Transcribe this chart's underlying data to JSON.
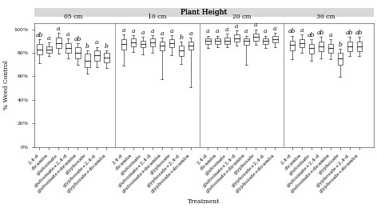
{
  "title": "Plant Height",
  "ylabel": "% Weed Control",
  "xlabel": "Treatment",
  "groups": [
    "05 cm",
    "10 cm",
    "20 cm",
    "30 cm"
  ],
  "treatments": [
    "2,4-d",
    "dicamba",
    "glufosinate",
    "glufosinate+2,4-d",
    "glufosinate+dicamba",
    "glyphosate",
    "glyphosate+2,4-d",
    "glyphosate+dicamba"
  ],
  "yticks": [
    0,
    0.2,
    0.4,
    0.6,
    0.8,
    1.0
  ],
  "yticklabels": [
    "0%",
    "20%",
    "40%",
    "60%",
    "80%",
    "100%"
  ],
  "letters": [
    [
      "ab",
      "a",
      "a",
      "a",
      "ab",
      "b",
      "a",
      "b"
    ],
    [
      "a",
      "a",
      "a",
      "a",
      "a",
      "a",
      "b",
      "a"
    ],
    [
      "a",
      "a",
      "a",
      "a",
      "a",
      "a",
      "a",
      "a"
    ],
    [
      "ab",
      "a",
      "ab",
      "ab",
      "a",
      "b",
      "ab",
      "ab"
    ]
  ],
  "boxes": {
    "05cm": [
      {
        "q1": 0.785,
        "med": 0.825,
        "q3": 0.875,
        "whislo": 0.715,
        "whishi": 0.915
      },
      {
        "q1": 0.8,
        "med": 0.825,
        "q3": 0.855,
        "whislo": 0.775,
        "whishi": 0.885
      },
      {
        "q1": 0.84,
        "med": 0.88,
        "q3": 0.93,
        "whislo": 0.79,
        "whishi": 0.97
      },
      {
        "q1": 0.8,
        "med": 0.84,
        "q3": 0.88,
        "whislo": 0.755,
        "whishi": 0.92
      },
      {
        "q1": 0.755,
        "med": 0.8,
        "q3": 0.845,
        "whislo": 0.7,
        "whishi": 0.88
      },
      {
        "q1": 0.68,
        "med": 0.73,
        "q3": 0.79,
        "whislo": 0.625,
        "whishi": 0.82
      },
      {
        "q1": 0.73,
        "med": 0.78,
        "q3": 0.82,
        "whislo": 0.68,
        "whishi": 0.85
      },
      {
        "q1": 0.72,
        "med": 0.76,
        "q3": 0.8,
        "whislo": 0.67,
        "whishi": 0.82
      }
    ],
    "10cm": [
      {
        "q1": 0.83,
        "med": 0.875,
        "q3": 0.915,
        "whislo": 0.69,
        "whishi": 0.955
      },
      {
        "q1": 0.855,
        "med": 0.89,
        "q3": 0.92,
        "whislo": 0.805,
        "whishi": 0.95
      },
      {
        "q1": 0.845,
        "med": 0.875,
        "q3": 0.905,
        "whislo": 0.785,
        "whishi": 0.935
      },
      {
        "q1": 0.855,
        "med": 0.89,
        "q3": 0.92,
        "whislo": 0.8,
        "whishi": 0.95
      },
      {
        "q1": 0.82,
        "med": 0.86,
        "q3": 0.895,
        "whislo": 0.575,
        "whishi": 0.93
      },
      {
        "q1": 0.845,
        "med": 0.88,
        "q3": 0.915,
        "whislo": 0.78,
        "whishi": 0.95
      },
      {
        "q1": 0.775,
        "med": 0.82,
        "q3": 0.86,
        "whislo": 0.705,
        "whishi": 0.895
      },
      {
        "q1": 0.825,
        "med": 0.86,
        "q3": 0.895,
        "whislo": 0.51,
        "whishi": 0.93
      }
    ],
    "20cm": [
      {
        "q1": 0.875,
        "med": 0.9,
        "q3": 0.92,
        "whislo": 0.84,
        "whishi": 0.945
      },
      {
        "q1": 0.875,
        "med": 0.9,
        "q3": 0.92,
        "whislo": 0.845,
        "whishi": 0.945
      },
      {
        "q1": 0.875,
        "med": 0.905,
        "q3": 0.93,
        "whislo": 0.845,
        "whishi": 0.96
      },
      {
        "q1": 0.895,
        "med": 0.925,
        "q3": 0.955,
        "whislo": 0.86,
        "whishi": 0.99
      },
      {
        "q1": 0.87,
        "med": 0.9,
        "q3": 0.92,
        "whislo": 0.7,
        "whishi": 0.945
      },
      {
        "q1": 0.905,
        "med": 0.935,
        "q3": 0.965,
        "whislo": 0.87,
        "whishi": 1.0
      },
      {
        "q1": 0.875,
        "med": 0.9,
        "q3": 0.92,
        "whislo": 0.84,
        "whishi": 0.945
      },
      {
        "q1": 0.885,
        "med": 0.915,
        "q3": 0.94,
        "whislo": 0.845,
        "whishi": 0.97
      }
    ],
    "30cm": [
      {
        "q1": 0.82,
        "med": 0.865,
        "q3": 0.905,
        "whislo": 0.745,
        "whishi": 0.945
      },
      {
        "q1": 0.845,
        "med": 0.88,
        "q3": 0.915,
        "whislo": 0.8,
        "whishi": 0.955
      },
      {
        "q1": 0.795,
        "med": 0.84,
        "q3": 0.875,
        "whislo": 0.735,
        "whishi": 0.915
      },
      {
        "q1": 0.815,
        "med": 0.855,
        "q3": 0.895,
        "whislo": 0.75,
        "whishi": 0.935
      },
      {
        "q1": 0.8,
        "med": 0.84,
        "q3": 0.875,
        "whislo": 0.745,
        "whishi": 0.915
      },
      {
        "q1": 0.695,
        "med": 0.755,
        "q3": 0.8,
        "whislo": 0.595,
        "whishi": 0.835
      },
      {
        "q1": 0.815,
        "med": 0.855,
        "q3": 0.895,
        "whislo": 0.775,
        "whishi": 0.935
      },
      {
        "q1": 0.815,
        "med": 0.855,
        "q3": 0.895,
        "whislo": 0.775,
        "whishi": 0.935
      }
    ]
  },
  "bg_color": "#ffffff",
  "title_bg_color": "#d8d8d8",
  "box_facecolor": "white",
  "box_edgecolor": "#333333",
  "median_color": "#333333",
  "whisker_color": "#333333",
  "cap_color": "#333333",
  "separator_color": "#888888",
  "fontsize_title": 6.5,
  "fontsize_tick": 4.5,
  "fontsize_label": 5.5,
  "fontsize_letter": 5.5,
  "fontsize_group": 5.5
}
